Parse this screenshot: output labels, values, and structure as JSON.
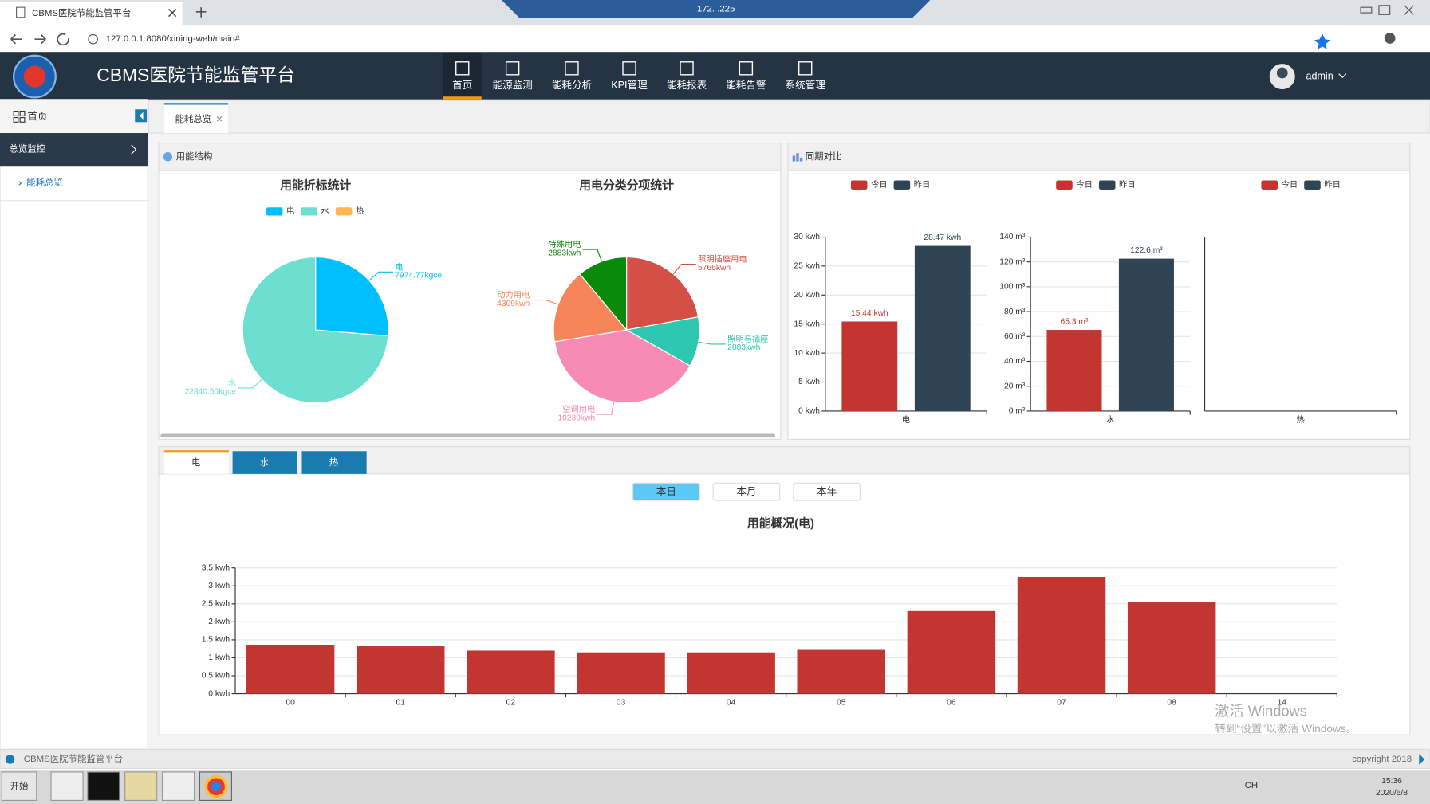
{
  "browser": {
    "tab_title": "CBMS医院节能监管平台",
    "url": "127.0.0.1:8080/xining-web/main#",
    "remote_title": "172.   .225"
  },
  "header": {
    "title": "CBMS医院节能监管平台",
    "nav": [
      "首页",
      "能源监测",
      "能耗分析",
      "KPI管理",
      "能耗报表",
      "能耗告警",
      "系统管理"
    ],
    "user": "admin"
  },
  "sidebar": {
    "home": "首页",
    "group": "总览监控",
    "item": "能耗总览"
  },
  "tabs": [
    "能耗总览"
  ],
  "panels": {
    "structure": "用能结构",
    "compare": "同期对比"
  },
  "usage_tabs": [
    "电",
    "水",
    "热"
  ],
  "period_buttons": [
    "本日",
    "本月",
    "本年"
  ],
  "chart_data": [
    {
      "type": "pie",
      "title": "用能折标统计",
      "categories": [
        "电",
        "水",
        "热"
      ],
      "values": [
        7974.77,
        22340.5,
        0
      ],
      "value_labels": [
        "7974.77kgce",
        "22340.50kgce",
        null
      ],
      "colors": [
        "#00bfff",
        "#6cdfd0",
        "#ffb550"
      ]
    },
    {
      "type": "pie",
      "title": "用电分类分项统计",
      "categories": [
        "照明插座用电",
        "照明与插座",
        "空调用电",
        "动力用电",
        "特殊用电"
      ],
      "values": [
        5766,
        2883,
        10230,
        4309,
        2883
      ],
      "value_labels": [
        "5766kwh",
        "2883kwh",
        "10230kwh",
        "4309kwh",
        "2883kwh"
      ],
      "colors": [
        "#d44f45",
        "#2ec7b0",
        "#f78bb5",
        "#f7855a",
        "#0a8a0a"
      ]
    },
    {
      "type": "bar",
      "categories": [
        "电"
      ],
      "series": [
        {
          "name": "今日",
          "color": "#c23531",
          "values": [
            15.44
          ],
          "value_labels": [
            "15.44 kwh"
          ]
        },
        {
          "name": "昨日",
          "color": "#2f4554",
          "values": [
            28.47
          ],
          "value_labels": [
            "28.47 kwh"
          ]
        }
      ],
      "ylim": [
        0,
        30
      ],
      "yticks": [
        {
          "value": 0,
          "label": "0 kwh"
        },
        {
          "value": 5,
          "label": "5 kwh"
        },
        {
          "value": 10,
          "label": "10 kwh"
        },
        {
          "value": 15,
          "label": "15 kwh"
        },
        {
          "value": 20,
          "label": "20 kwh"
        },
        {
          "value": 25,
          "label": "25 kwh"
        },
        {
          "value": 30,
          "label": "30 kwh"
        }
      ],
      "grid": true
    },
    {
      "type": "bar",
      "categories": [
        "水"
      ],
      "series": [
        {
          "name": "今日",
          "color": "#c23531",
          "values": [
            65.3
          ],
          "value_labels": [
            "65.3 m³"
          ]
        },
        {
          "name": "昨日",
          "color": "#2f4554",
          "values": [
            122.6
          ],
          "value_labels": [
            "122.6 m³"
          ]
        }
      ],
      "ylim": [
        0,
        140
      ],
      "yticks": [
        {
          "value": 0,
          "label": "0 m³"
        },
        {
          "value": 20,
          "label": "20 m³"
        },
        {
          "value": 40,
          "label": "40 m³"
        },
        {
          "value": 60,
          "label": "60 m³"
        },
        {
          "value": 80,
          "label": "80 m³"
        },
        {
          "value": 100,
          "label": "100 m³"
        },
        {
          "value": 120,
          "label": "120 m³"
        },
        {
          "value": 140,
          "label": "140 m³"
        }
      ],
      "grid": true
    },
    {
      "type": "bar",
      "categories": [
        "热"
      ],
      "series": [
        {
          "name": "今日",
          "color": "#c23531",
          "values": [
            null
          ]
        },
        {
          "name": "昨日",
          "color": "#2f4554",
          "values": [
            null
          ]
        }
      ]
    },
    {
      "type": "bar",
      "title": "用能概况(电)",
      "categories": [
        "00",
        "01",
        "02",
        "03",
        "04",
        "05",
        "06",
        "07",
        "08",
        "14"
      ],
      "values": [
        1.35,
        1.32,
        1.2,
        1.15,
        1.15,
        1.22,
        2.3,
        3.25,
        2.55,
        null
      ],
      "color": "#c23531",
      "ylim": [
        0,
        3.5
      ],
      "yticks": [
        {
          "value": 0,
          "label": "0 kwh"
        },
        {
          "value": 0.5,
          "label": "0.5 kwh"
        },
        {
          "value": 1,
          "label": "1 kwh"
        },
        {
          "value": 1.5,
          "label": "1.5 kwh"
        },
        {
          "value": 2,
          "label": "2 kwh"
        },
        {
          "value": 2.5,
          "label": "2.5 kwh"
        },
        {
          "value": 3,
          "label": "3 kwh"
        },
        {
          "value": 3.5,
          "label": "3.5 kwh"
        }
      ],
      "grid": true
    }
  ],
  "footer": {
    "left": "CBMS医院节能监管平台",
    "right": "copyright 2018"
  },
  "watermark": {
    "line1": "激活 Windows",
    "line2": "转到“设置”以激活 Windows。"
  },
  "taskbar": {
    "start": "开始",
    "lang": "CH",
    "time": "15:36",
    "date": "2020/6/8"
  }
}
